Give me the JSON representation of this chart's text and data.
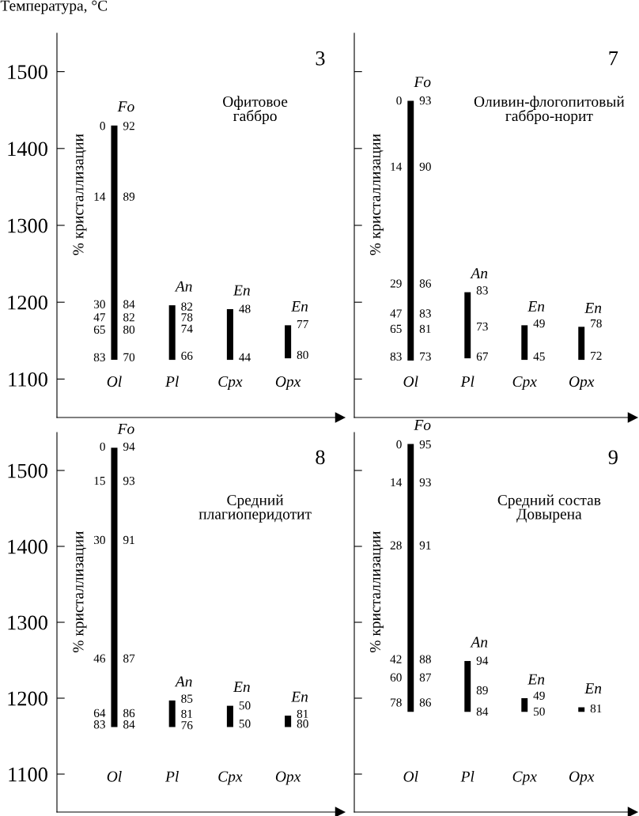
{
  "chart_data": [
    {
      "type": "bar",
      "title": "Офитовое\nгаббро",
      "subtitle": "3",
      "ylabel": "Температура, °C",
      "categories": [
        "Ol",
        "Pl",
        "Cpx",
        "Opx"
      ],
      "base": [
        1125,
        1125,
        1125,
        1127
      ],
      "values": [
        305,
        71,
        66,
        43
      ],
      "color": "#000000",
      "ylim": [
        1050,
        1550
      ],
      "yticks": [
        1100,
        1200,
        1300,
        1400,
        1500
      ],
      "annotations": [
        "% кристаллизации",
        "Fo",
        "An",
        "En",
        "En",
        {
          "text": "0",
          "x": "Ol",
          "y": 1428
        },
        {
          "text": "92",
          "x": "Ol",
          "y": 1428
        },
        {
          "text": "14",
          "x": "Ol",
          "y": 1336
        },
        {
          "text": "89",
          "x": "Ol",
          "y": 1336
        },
        {
          "text": "30",
          "x": "Ol",
          "y": 1196
        },
        {
          "text": "84",
          "x": "Ol",
          "y": 1196
        },
        {
          "text": "47",
          "x": "Ol",
          "y": 1179
        },
        {
          "text": "82",
          "x": "Ol",
          "y": 1179
        },
        {
          "text": "65",
          "x": "Ol",
          "y": 1163
        },
        {
          "text": "80",
          "x": "Ol",
          "y": 1163
        },
        {
          "text": "83",
          "x": "Ol",
          "y": 1127
        },
        {
          "text": "70",
          "x": "Ol",
          "y": 1127
        },
        {
          "text": "82",
          "x": "Pl",
          "y": 1193
        },
        {
          "text": "78",
          "x": "Pl",
          "y": 1179
        },
        {
          "text": "74",
          "x": "Pl",
          "y": 1164
        },
        {
          "text": "66",
          "x": "Pl",
          "y": 1129
        },
        {
          "text": "48",
          "x": "Cpx",
          "y": 1190
        },
        {
          "text": "44",
          "x": "Cpx",
          "y": 1127
        },
        {
          "text": "77",
          "x": "Opx",
          "y": 1170
        },
        {
          "text": "80",
          "x": "Opx",
          "y": 1130
        }
      ]
    },
    {
      "type": "bar",
      "title": "Оливин-флогопитовый\nгаббро-норит",
      "subtitle": "7",
      "categories": [
        "Ol",
        "Pl",
        "Cpx",
        "Opx"
      ],
      "base": [
        1124,
        1127,
        1125,
        1125
      ],
      "values": [
        338,
        86,
        45,
        43
      ],
      "color": "#000000",
      "ylim": [
        1050,
        1550
      ],
      "yticks": [
        1100,
        1200,
        1300,
        1400,
        1500
      ],
      "tick_labels": "x",
      "annotations": [
        "% кристаллизации",
        "Fo",
        "An",
        "En",
        "En",
        {
          "text": "0",
          "x": "Ol",
          "y": 1461
        },
        {
          "text": "93",
          "x": "Ol",
          "y": 1461
        },
        {
          "text": "14",
          "x": "Ol",
          "y": 1375
        },
        {
          "text": "90",
          "x": "Ol",
          "y": 1375
        },
        {
          "text": "29",
          "x": "Ol",
          "y": 1223
        },
        {
          "text": "86",
          "x": "Ol",
          "y": 1223
        },
        {
          "text": "47",
          "x": "Ol",
          "y": 1184
        },
        {
          "text": "83",
          "x": "Ol",
          "y": 1184
        },
        {
          "text": "65",
          "x": "Ol",
          "y": 1164
        },
        {
          "text": "81",
          "x": "Ol",
          "y": 1164
        },
        {
          "text": "83",
          "x": "Ol",
          "y": 1128
        },
        {
          "text": "73",
          "x": "Ol",
          "y": 1128
        },
        {
          "text": "83",
          "x": "Pl",
          "y": 1214
        },
        {
          "text": "73",
          "x": "Pl",
          "y": 1167
        },
        {
          "text": "67",
          "x": "Pl",
          "y": 1128
        },
        {
          "text": "49",
          "x": "Cpx",
          "y": 1171
        },
        {
          "text": "45",
          "x": "Cpx",
          "y": 1128
        },
        {
          "text": "78",
          "x": "Opx",
          "y": 1171
        },
        {
          "text": "72",
          "x": "Opx",
          "y": 1129
        }
      ]
    },
    {
      "type": "bar",
      "title": "Средний\nплагиоперидотит",
      "subtitle": "8",
      "categories": [
        "Ol",
        "Pl",
        "Cpx",
        "Opx"
      ],
      "base": [
        1162,
        1162,
        1162,
        1162
      ],
      "values": [
        368,
        35,
        28,
        15
      ],
      "color": "#000000",
      "ylim": [
        1050,
        1550
      ],
      "yticks": [
        1100,
        1200,
        1300,
        1400,
        1500
      ],
      "annotations": [
        "% кристаллизации",
        "Fo",
        "An",
        "En",
        "En",
        {
          "text": "0",
          "x": "Ol",
          "y": 1530
        },
        {
          "text": "94",
          "x": "Ol",
          "y": 1530
        },
        {
          "text": "15",
          "x": "Ol",
          "y": 1485
        },
        {
          "text": "93",
          "x": "Ol",
          "y": 1485
        },
        {
          "text": "30",
          "x": "Ol",
          "y": 1407
        },
        {
          "text": "91",
          "x": "Ol",
          "y": 1407
        },
        {
          "text": "46",
          "x": "Ol",
          "y": 1251
        },
        {
          "text": "87",
          "x": "Ol",
          "y": 1251
        },
        {
          "text": "64",
          "x": "Ol",
          "y": 1179
        },
        {
          "text": "86",
          "x": "Ol",
          "y": 1179
        },
        {
          "text": "83",
          "x": "Ol",
          "y": 1164
        },
        {
          "text": "84",
          "x": "Ol",
          "y": 1164
        },
        {
          "text": "85",
          "x": "Pl",
          "y": 1198
        },
        {
          "text": "81",
          "x": "Pl",
          "y": 1178
        },
        {
          "text": "76",
          "x": "Pl",
          "y": 1163
        },
        {
          "text": "50",
          "x": "Cpx",
          "y": 1189
        },
        {
          "text": "50",
          "x": "Cpx",
          "y": 1165
        },
        {
          "text": "81",
          "x": "Opx",
          "y": 1178
        },
        {
          "text": "80",
          "x": "Opx",
          "y": 1165
        }
      ]
    },
    {
      "type": "bar",
      "title": "Средний состав\nДовырена",
      "subtitle": "9",
      "categories": [
        "Ol",
        "Pl",
        "Cpx",
        "Opx"
      ],
      "base": [
        1182,
        1182,
        1182,
        1182
      ],
      "values": [
        353,
        67,
        18,
        6
      ],
      "color": "#000000",
      "ylim": [
        1050,
        1550
      ],
      "yticks": [
        1100,
        1200,
        1300,
        1400,
        1500
      ],
      "tick_labels": "x",
      "annotations": [
        "% кристаллизации",
        "Fo",
        "An",
        "En",
        "En",
        {
          "text": "0",
          "x": "Ol",
          "y": 1533
        },
        {
          "text": "95",
          "x": "Ol",
          "y": 1533
        },
        {
          "text": "14",
          "x": "Ol",
          "y": 1483
        },
        {
          "text": "93",
          "x": "Ol",
          "y": 1483
        },
        {
          "text": "28",
          "x": "Ol",
          "y": 1400
        },
        {
          "text": "91",
          "x": "Ol",
          "y": 1400
        },
        {
          "text": "42",
          "x": "Ol",
          "y": 1250
        },
        {
          "text": "88",
          "x": "Ol",
          "y": 1250
        },
        {
          "text": "60",
          "x": "Ol",
          "y": 1226
        },
        {
          "text": "87",
          "x": "Ol",
          "y": 1226
        },
        {
          "text": "78",
          "x": "Ol",
          "y": 1193
        },
        {
          "text": "86",
          "x": "Ol",
          "y": 1193
        },
        {
          "text": "94",
          "x": "Pl",
          "y": 1248
        },
        {
          "text": "89",
          "x": "Pl",
          "y": 1209
        },
        {
          "text": "84",
          "x": "Pl",
          "y": 1181
        },
        {
          "text": "49",
          "x": "Cpx",
          "y": 1202
        },
        {
          "text": "50",
          "x": "Cpx",
          "y": 1181
        },
        {
          "text": "81",
          "x": "Opx",
          "y": 1185
        }
      ]
    }
  ]
}
